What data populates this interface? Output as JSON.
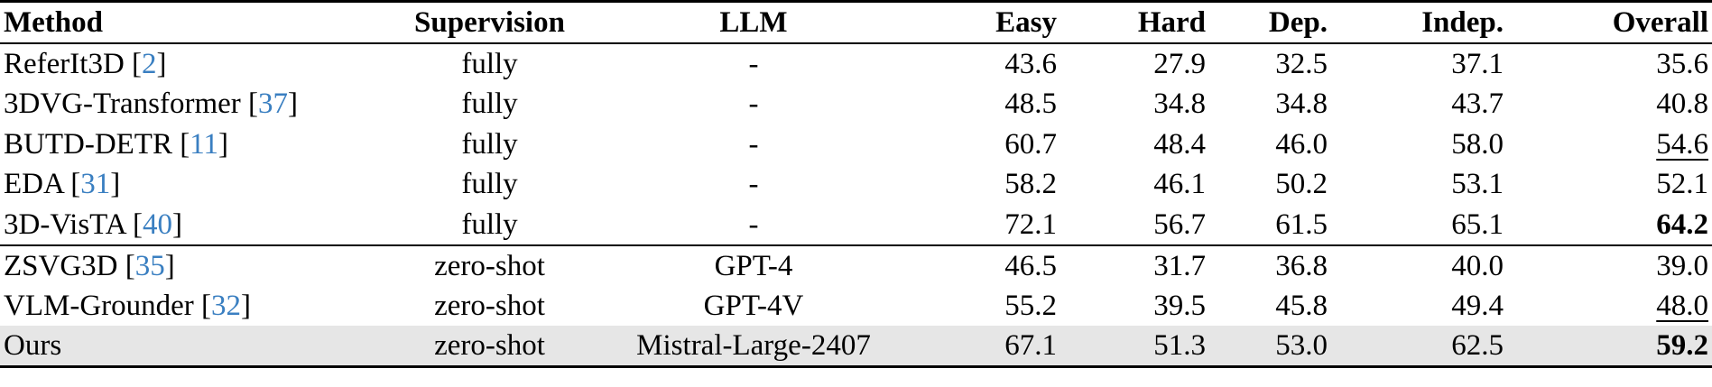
{
  "table": {
    "headers": {
      "method": "Method",
      "supervision": "Supervision",
      "llm": "LLM",
      "easy": "Easy",
      "hard": "Hard",
      "dep": "Dep.",
      "indep": "Indep.",
      "overall": "Overall"
    },
    "rows": [
      {
        "method": "ReferIt3D",
        "cite": "2",
        "supervision": "fully",
        "llm": "-",
        "easy": "43.6",
        "hard": "27.9",
        "dep": "32.5",
        "indep": "37.1",
        "overall": "35.6"
      },
      {
        "method": "3DVG-Transformer",
        "cite": "37",
        "supervision": "fully",
        "llm": "-",
        "easy": "48.5",
        "hard": "34.8",
        "dep": "34.8",
        "indep": "43.7",
        "overall": "40.8"
      },
      {
        "method": "BUTD-DETR",
        "cite": "11",
        "supervision": "fully",
        "llm": "-",
        "easy": "60.7",
        "hard": "48.4",
        "dep": "46.0",
        "indep": "58.0",
        "overall": "54.6"
      },
      {
        "method": "EDA",
        "cite": "31",
        "supervision": "fully",
        "llm": "-",
        "easy": "58.2",
        "hard": "46.1",
        "dep": "50.2",
        "indep": "53.1",
        "overall": "52.1"
      },
      {
        "method": "3D-VisTA",
        "cite": "40",
        "supervision": "fully",
        "llm": "-",
        "easy": "72.1",
        "hard": "56.7",
        "dep": "61.5",
        "indep": "65.1",
        "overall": "64.2"
      },
      {
        "method": "ZSVG3D",
        "cite": "35",
        "supervision": "zero-shot",
        "llm": "GPT-4",
        "easy": "46.5",
        "hard": "31.7",
        "dep": "36.8",
        "indep": "40.0",
        "overall": "39.0"
      },
      {
        "method": "VLM-Grounder",
        "cite": "32",
        "supervision": "zero-shot",
        "llm": "GPT-4V",
        "easy": "55.2",
        "hard": "39.5",
        "dep": "45.8",
        "indep": "49.4",
        "overall": "48.0"
      },
      {
        "method": "Ours",
        "cite": "",
        "supervision": "zero-shot",
        "llm": "Mistral-Large-2407",
        "easy": "67.1",
        "hard": "51.3",
        "dep": "53.0",
        "indep": "62.5",
        "overall": "59.2"
      }
    ]
  }
}
